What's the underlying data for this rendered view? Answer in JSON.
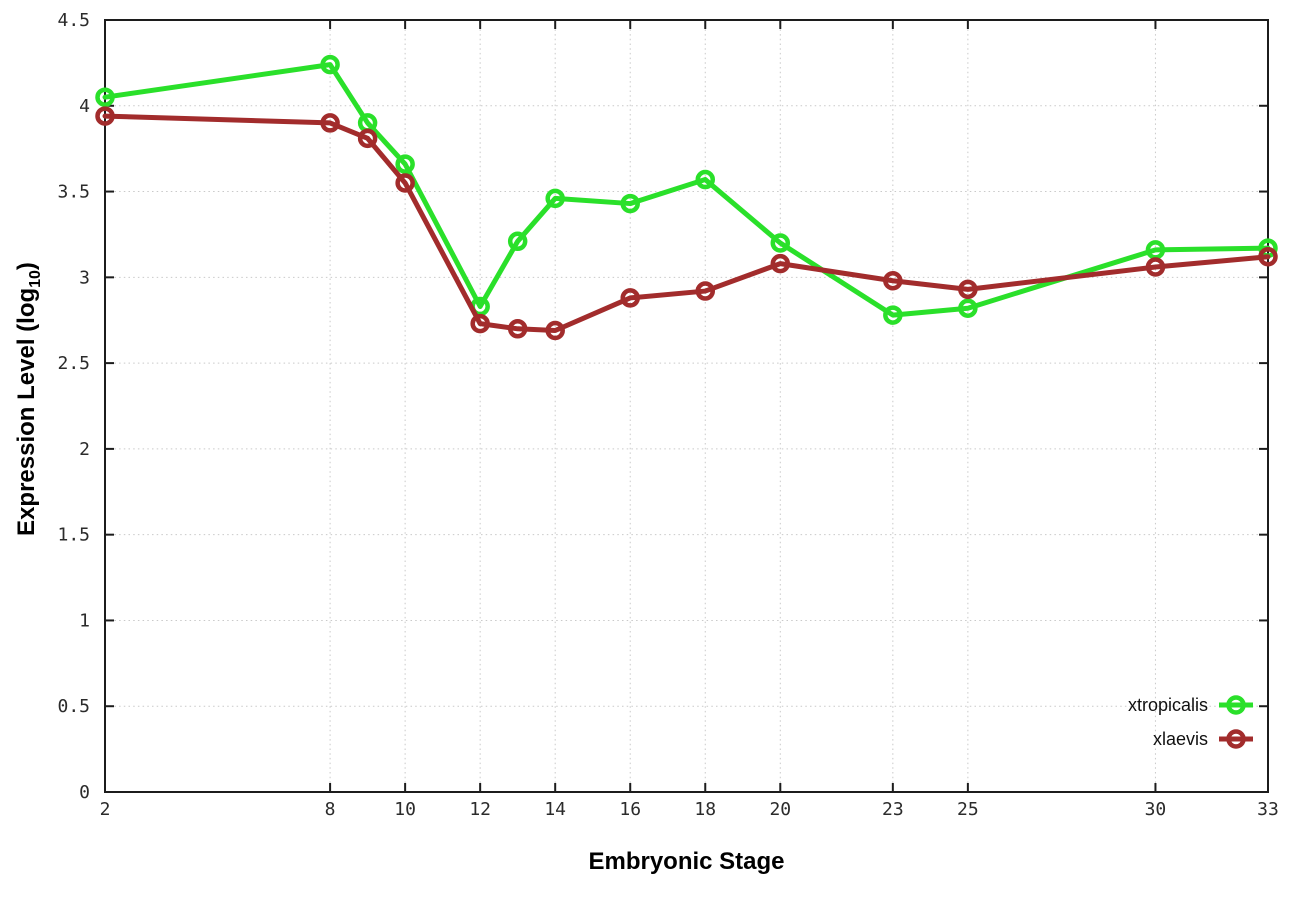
{
  "chart_data": {
    "type": "line",
    "title": "",
    "xlabel": "Embryonic Stage",
    "ylabel": "Expression Level (log10)",
    "ylabel_parts": {
      "pre": "Expression Level (log",
      "sub": "10",
      "post": ")"
    },
    "x": [
      2,
      8,
      9,
      10,
      12,
      13,
      14,
      16,
      18,
      20,
      23,
      25,
      30,
      33
    ],
    "xticks": [
      2,
      8,
      10,
      12,
      14,
      16,
      18,
      20,
      23,
      25,
      30,
      33
    ],
    "yticks": [
      0,
      0.5,
      1,
      1.5,
      2,
      2.5,
      3,
      3.5,
      4,
      4.5
    ],
    "xlim": [
      2,
      33
    ],
    "ylim": [
      0,
      4.5
    ],
    "grid": true,
    "legend_position": "bottom-right",
    "series": [
      {
        "name": "xtropicalis",
        "color": "#2ae02a",
        "values": [
          4.05,
          4.24,
          3.9,
          3.66,
          2.83,
          3.21,
          3.46,
          3.43,
          3.57,
          3.2,
          2.78,
          2.82,
          3.16,
          3.17
        ]
      },
      {
        "name": "xlaevis",
        "color": "#a22c2c",
        "values": [
          3.94,
          3.9,
          3.81,
          3.55,
          2.73,
          2.7,
          2.69,
          2.88,
          2.92,
          3.08,
          2.98,
          2.93,
          3.06,
          3.12
        ]
      }
    ],
    "style": {
      "grid_color": "#c9c9c9",
      "border_color": "#1c1c1c",
      "tick_text_color": "#2b2b2b",
      "background": "#ffffff"
    }
  }
}
